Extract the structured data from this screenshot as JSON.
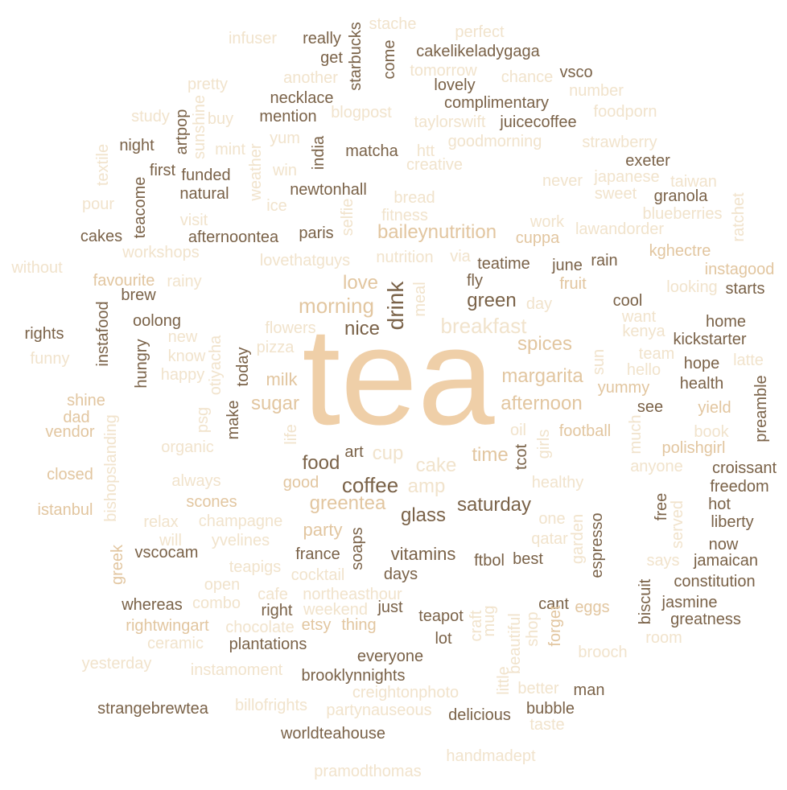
{
  "wordcloud": {
    "main_word": "tea",
    "words": [
      "infuser",
      "really",
      "get",
      "starbucks",
      "stache",
      "come",
      "perfect",
      "cakelikeladygaga",
      "vsco",
      "tomorrow",
      "lovely",
      "chance",
      "another",
      "pretty",
      "necklace",
      "number",
      "mention",
      "blogpost",
      "complimentary",
      "foodporn",
      "study",
      "artpop",
      "sunshine",
      "buy",
      "yum",
      "taylorswift",
      "juicecoffee",
      "night",
      "mint",
      "goodmorning",
      "strawberry",
      "textile",
      "weather",
      "india",
      "matcha",
      "htt",
      "creative",
      "exeter",
      "first",
      "funded",
      "win",
      "japanese",
      "taiwan",
      "natural",
      "newtonhall",
      "never",
      "sweet",
      "granola",
      "teacome",
      "pour",
      "ice",
      "bread",
      "selfie",
      "work",
      "blueberries",
      "fitness",
      "ratchet",
      "visit",
      "cakes",
      "afternoontea",
      "paris",
      "baileynutrition",
      "cuppa",
      "lawandorder",
      "workshops",
      "without",
      "kghectre",
      "rain",
      "lovethatguys",
      "nutrition",
      "via",
      "teatime",
      "june",
      "instagood",
      "favourite",
      "rainy",
      "fly",
      "fruit",
      "looking",
      "starts",
      "brew",
      "morning",
      "love",
      "green",
      "cool",
      "drink",
      "meal",
      "day",
      "want",
      "home",
      "oolong",
      "rights",
      "flowers",
      "nice",
      "breakfast",
      "kenya",
      "kickstarter",
      "instafood",
      "new",
      "pizza",
      "spices",
      "team",
      "latte",
      "funny",
      "know",
      "hungry",
      "today",
      "otiyacha",
      "sun",
      "hope",
      "happy",
      "milk",
      "margarita",
      "hello",
      "health",
      "yummy",
      "preamble",
      "shine",
      "sugar",
      "afternoon",
      "see",
      "yield",
      "dad",
      "vendor",
      "psg",
      "make",
      "life",
      "oil",
      "football",
      "book",
      "organic",
      "time",
      "cup",
      "girls",
      "polishgirl",
      "food",
      "art",
      "cake",
      "tcot",
      "anyone",
      "croissant",
      "always",
      "good",
      "coffee",
      "amp",
      "healthy",
      "closed",
      "freedom",
      "scones",
      "greentea",
      "much",
      "free",
      "hot",
      "istanbul",
      "bishopslanding",
      "saturday",
      "one",
      "served",
      "liberty",
      "relax",
      "champagne",
      "glass",
      "party",
      "qatar",
      "espresso",
      "now",
      "will",
      "yvelines",
      "soaps",
      "garden",
      "greek",
      "vscocam",
      "france",
      "vitamins",
      "ftbol",
      "best",
      "jamaican",
      "teapigs",
      "open",
      "cocktail",
      "says",
      "days",
      "constitution",
      "cafe",
      "northeasthour",
      "cant",
      "eggs",
      "biscuit",
      "whereas",
      "combo",
      "right",
      "weekend",
      "just",
      "jasmine",
      "teapot",
      "rightwingart",
      "chocolate",
      "etsy",
      "thing",
      "mug",
      "craft",
      "greatness",
      "lot",
      "forget",
      "shop",
      "ceramic",
      "plantations",
      "beautiful",
      "brooch",
      "room",
      "everyone",
      "yesterday",
      "instamoment",
      "brooklynnights",
      "little",
      "man",
      "better",
      "strangebrewtea",
      "billofrights",
      "creightonphoto",
      "partynauseous",
      "delicious",
      "bubble",
      "taste",
      "worldteahouse",
      "handmadept",
      "pramodthomas"
    ]
  },
  "colors": {
    "dark": "#7a6248",
    "mid": "#e2c6a0",
    "light": "#f1e3cc",
    "hero": "#efcfa8",
    "background": "#ffffff"
  }
}
